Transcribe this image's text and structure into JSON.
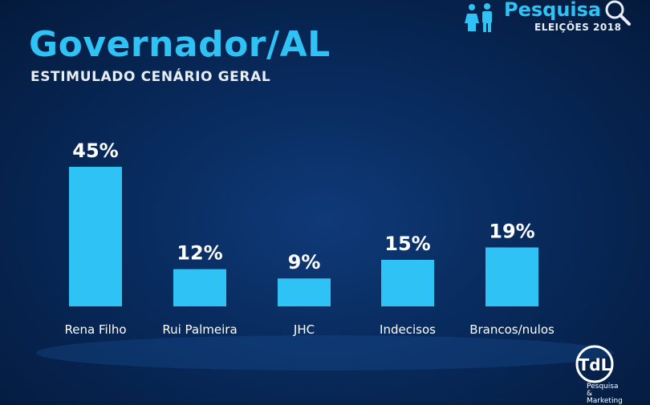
{
  "header": {
    "title": "Governador/AL",
    "subtitle": "ESTIMULADO CENÁRIO GERAL"
  },
  "brand": {
    "name": "Pesquisa",
    "subtitle": "ELEIÇÕES 2018",
    "icons": [
      "people-icon",
      "magnifier-icon"
    ]
  },
  "logo": {
    "mark": "TdL",
    "tagline": "Pesquisa & Marketing"
  },
  "colors": {
    "bar": "#2ec3f4",
    "title": "#2ec3f4",
    "text": "#ffffff"
  },
  "chart_data": {
    "type": "bar",
    "categories": [
      "Rena Filho",
      "Rui Palmeira",
      "JHC",
      "Indecisos",
      "Brancos/nulos"
    ],
    "values": [
      45,
      12,
      9,
      15,
      19
    ],
    "data_labels": [
      "45%",
      "12%",
      "9%",
      "15%",
      "19%"
    ],
    "ylim": [
      0,
      45
    ],
    "grid": false,
    "legend": "none"
  }
}
